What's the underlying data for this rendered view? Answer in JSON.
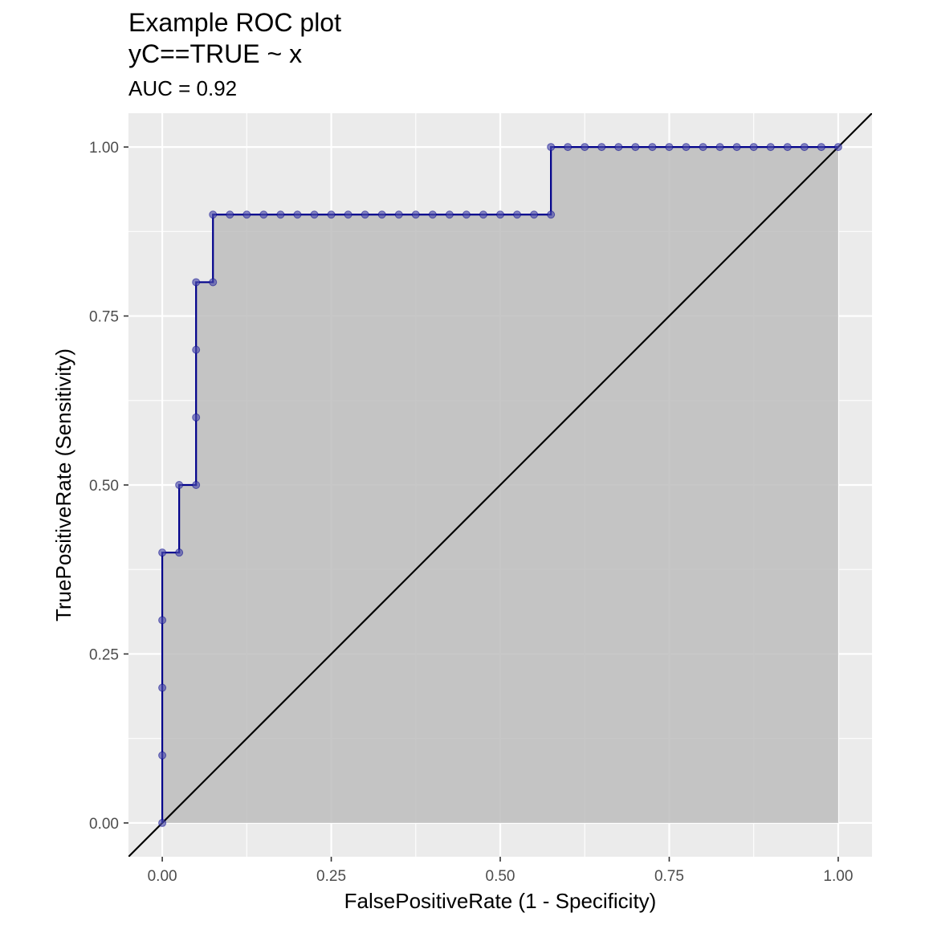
{
  "chart_data": {
    "type": "line",
    "title": "Example ROC plot",
    "title_line2": "yC==TRUE ~ x",
    "subtitle": "AUC = 0.92",
    "xlabel": "FalsePositiveRate (1 - Specificity)",
    "ylabel": "TruePositiveRate (Sensitivity)",
    "xlim": [
      -0.05,
      1.05
    ],
    "ylim": [
      -0.05,
      1.05
    ],
    "x_ticks": [
      0,
      0.25,
      0.5,
      0.75,
      1
    ],
    "x_tick_labels": [
      "0.00",
      "0.25",
      "0.50",
      "0.75",
      "1.00"
    ],
    "y_ticks": [
      0,
      0.25,
      0.5,
      0.75,
      1
    ],
    "y_tick_labels": [
      "0.00",
      "0.25",
      "0.50",
      "0.75",
      "1.00"
    ],
    "grid": true,
    "series": [
      {
        "type": "step",
        "x": [
          0,
          0,
          0,
          0,
          0,
          0.025,
          0.025,
          0.05,
          0.05,
          0.05,
          0.05,
          0.075,
          0.075,
          0.1,
          0.125,
          0.15,
          0.175,
          0.2,
          0.225,
          0.25,
          0.275,
          0.3,
          0.325,
          0.35,
          0.375,
          0.4,
          0.425,
          0.45,
          0.475,
          0.5,
          0.525,
          0.55,
          0.575,
          0.575,
          0.6,
          0.625,
          0.65,
          0.675,
          0.7,
          0.725,
          0.75,
          0.775,
          0.8,
          0.825,
          0.85,
          0.875,
          0.9,
          0.925,
          0.95,
          0.975,
          1.0
        ],
        "y": [
          0,
          0.1,
          0.2,
          0.3,
          0.4,
          0.4,
          0.5,
          0.5,
          0.6,
          0.7,
          0.8,
          0.8,
          0.9,
          0.9,
          0.9,
          0.9,
          0.9,
          0.9,
          0.9,
          0.9,
          0.9,
          0.9,
          0.9,
          0.9,
          0.9,
          0.9,
          0.9,
          0.9,
          0.9,
          0.9,
          0.9,
          0.9,
          0.9,
          1.0,
          1.0,
          1.0,
          1.0,
          1.0,
          1.0,
          1.0,
          1.0,
          1.0,
          1.0,
          1.0,
          1.0,
          1.0,
          1.0,
          1.0,
          1.0,
          1.0,
          1.0
        ]
      },
      {
        "type": "reference-line",
        "x": [
          0,
          1
        ],
        "y": [
          0,
          1
        ]
      }
    ],
    "colors": {
      "panel_background": "#ebebeb",
      "grid": "#ffffff",
      "area_fill": "#bdbdbd",
      "curve": "#00008b",
      "points": "#4b4bab",
      "diagonal": "#000000"
    }
  }
}
